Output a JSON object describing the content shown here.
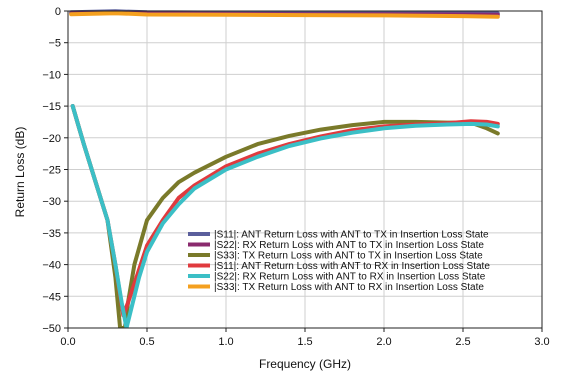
{
  "chart_data": {
    "type": "line",
    "title": "",
    "xlabel": "Frequency (GHz)",
    "ylabel": "Return Loss (dB)",
    "xlim": [
      0.0,
      3.0
    ],
    "ylim": [
      -50,
      0
    ],
    "x_ticks": [
      "0.0",
      "0.5",
      "1.0",
      "1.5",
      "2.0",
      "2.5",
      "3.0"
    ],
    "y_ticks": [
      "0",
      "−5",
      "−10",
      "−15",
      "−20",
      "−25",
      "−30",
      "−35",
      "−40",
      "−45",
      "−50"
    ],
    "grid": true,
    "legend_position": "bottom-right",
    "series": [
      {
        "name": "|S11|: ANT Return Loss with ANT to TX in Insertion Loss State",
        "color": "#5b5f9c",
        "points": [
          [
            0.02,
            -0.2
          ],
          [
            0.3,
            -0.05
          ],
          [
            0.5,
            -0.2
          ],
          [
            1.0,
            -0.25
          ],
          [
            1.5,
            -0.3
          ],
          [
            2.0,
            -0.3
          ],
          [
            2.5,
            -0.35
          ],
          [
            2.72,
            -0.4
          ]
        ]
      },
      {
        "name": "|S22|: RX Return Loss with ANT to TX in Insertion Loss State",
        "color": "#8a2a6e",
        "points": [
          [
            0.02,
            -0.4
          ],
          [
            0.3,
            -0.2
          ],
          [
            0.5,
            -0.4
          ],
          [
            1.0,
            -0.45
          ],
          [
            1.5,
            -0.5
          ],
          [
            2.0,
            -0.5
          ],
          [
            2.5,
            -0.55
          ],
          [
            2.72,
            -0.6
          ]
        ]
      },
      {
        "name": "|S33|: TX Return Loss with ANT to TX in Insertion Loss State",
        "color": "#7a7a2a",
        "points": [
          [
            0.03,
            -15
          ],
          [
            0.1,
            -21
          ],
          [
            0.2,
            -29
          ],
          [
            0.25,
            -33
          ],
          [
            0.3,
            -42
          ],
          [
            0.33,
            -50
          ],
          [
            0.36,
            -50
          ],
          [
            0.38,
            -46
          ],
          [
            0.42,
            -40
          ],
          [
            0.5,
            -33
          ],
          [
            0.6,
            -29.5
          ],
          [
            0.7,
            -27
          ],
          [
            0.8,
            -25.5
          ],
          [
            1.0,
            -23
          ],
          [
            1.2,
            -21
          ],
          [
            1.4,
            -19.7
          ],
          [
            1.6,
            -18.7
          ],
          [
            1.8,
            -18.0
          ],
          [
            2.0,
            -17.5
          ],
          [
            2.2,
            -17.5
          ],
          [
            2.4,
            -17.6
          ],
          [
            2.55,
            -17.6
          ],
          [
            2.65,
            -18.5
          ],
          [
            2.72,
            -19.3
          ]
        ]
      },
      {
        "name": "|S11|: ANT Return Loss with ANT to RX in Insertion Loss State",
        "color": "#e03a3e",
        "points": [
          [
            0.03,
            -15
          ],
          [
            0.1,
            -21
          ],
          [
            0.2,
            -29
          ],
          [
            0.25,
            -33
          ],
          [
            0.3,
            -40
          ],
          [
            0.35,
            -48
          ],
          [
            0.38,
            -46
          ],
          [
            0.42,
            -43
          ],
          [
            0.5,
            -37
          ],
          [
            0.6,
            -33
          ],
          [
            0.7,
            -29.5
          ],
          [
            0.8,
            -27.5
          ],
          [
            1.0,
            -24.5
          ],
          [
            1.2,
            -22.5
          ],
          [
            1.4,
            -21
          ],
          [
            1.6,
            -19.8
          ],
          [
            1.8,
            -18.8
          ],
          [
            2.0,
            -18.2
          ],
          [
            2.2,
            -17.9
          ],
          [
            2.4,
            -17.7
          ],
          [
            2.55,
            -17.4
          ],
          [
            2.65,
            -17.5
          ],
          [
            2.72,
            -17.8
          ]
        ]
      },
      {
        "name": "|S22|: RX Return Loss with ANT to RX in Insertion Loss State",
        "color": "#3bbfc6",
        "points": [
          [
            0.03,
            -15
          ],
          [
            0.1,
            -21
          ],
          [
            0.2,
            -29
          ],
          [
            0.25,
            -33
          ],
          [
            0.3,
            -40
          ],
          [
            0.34,
            -46
          ],
          [
            0.37,
            -50
          ],
          [
            0.4,
            -47
          ],
          [
            0.45,
            -42
          ],
          [
            0.5,
            -38
          ],
          [
            0.6,
            -33.5
          ],
          [
            0.7,
            -30.5
          ],
          [
            0.8,
            -28
          ],
          [
            1.0,
            -25
          ],
          [
            1.2,
            -23
          ],
          [
            1.4,
            -21.3
          ],
          [
            1.6,
            -20.1
          ],
          [
            1.8,
            -19.2
          ],
          [
            2.0,
            -18.5
          ],
          [
            2.2,
            -18.1
          ],
          [
            2.4,
            -17.9
          ],
          [
            2.55,
            -17.8
          ],
          [
            2.65,
            -17.9
          ],
          [
            2.72,
            -18.2
          ]
        ]
      },
      {
        "name": "|S33|: TX Return Loss with ANT to RX in Insertion Loss State",
        "color": "#f4a01f",
        "points": [
          [
            0.02,
            -0.5
          ],
          [
            0.3,
            -0.35
          ],
          [
            0.5,
            -0.55
          ],
          [
            1.0,
            -0.6
          ],
          [
            1.5,
            -0.65
          ],
          [
            2.0,
            -0.7
          ],
          [
            2.5,
            -0.8
          ],
          [
            2.72,
            -0.9
          ]
        ]
      }
    ]
  }
}
